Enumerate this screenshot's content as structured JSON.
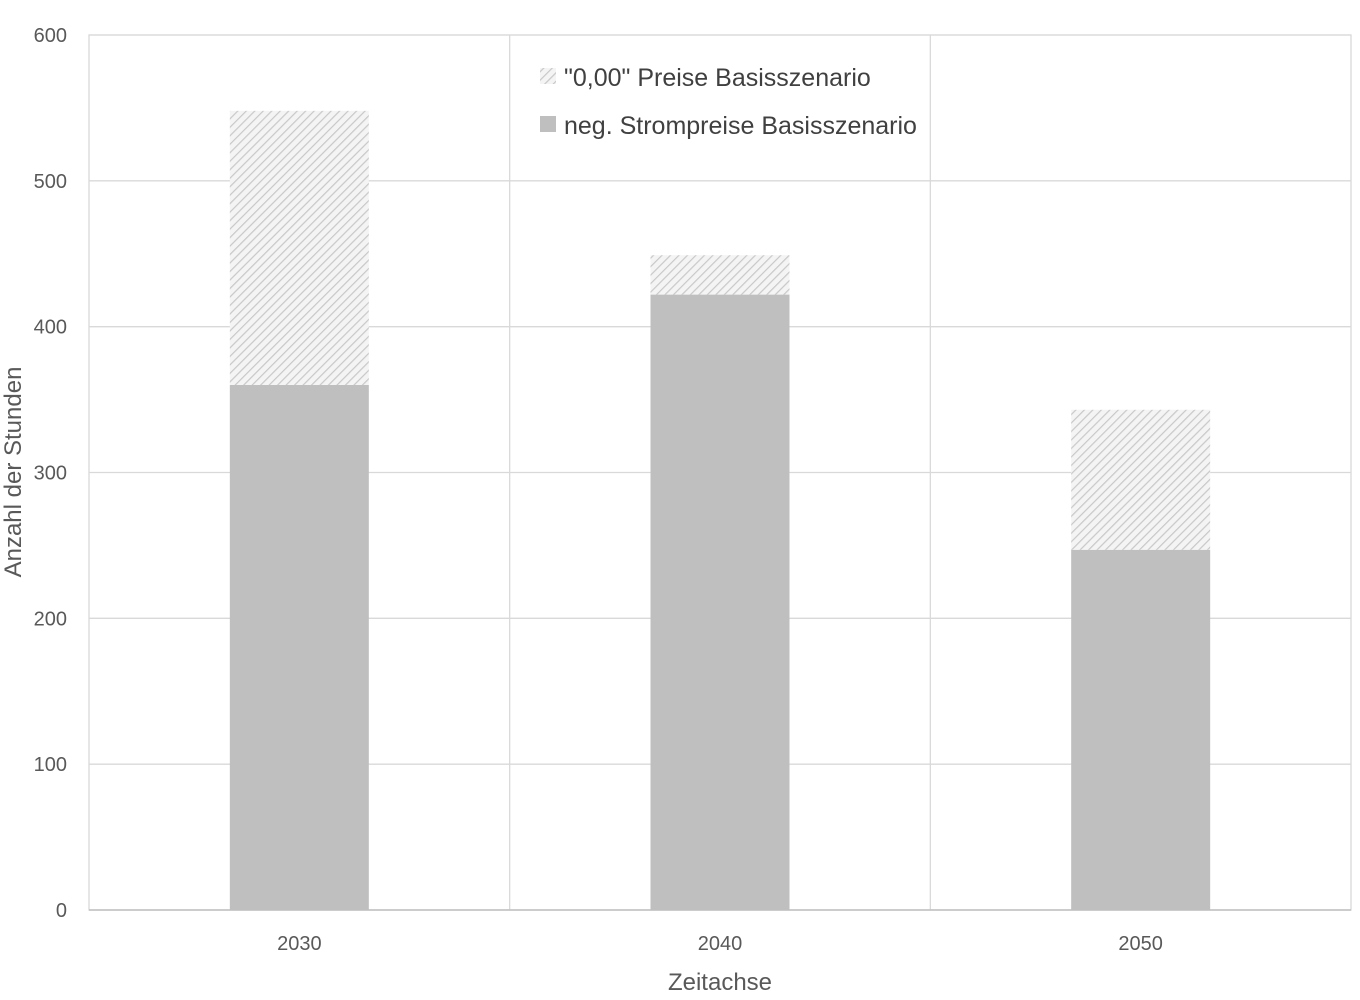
{
  "chart_data": {
    "type": "bar",
    "stacked": true,
    "categories": [
      "2030",
      "2040",
      "2050"
    ],
    "series": [
      {
        "name": "neg. Strompreise Basisszenario",
        "values": [
          360,
          422,
          247
        ],
        "color": "#bfbfbf",
        "pattern": "solid"
      },
      {
        "name": "\"0,00\" Preise Basisszenario",
        "values": [
          188,
          27,
          96
        ],
        "color": "#d9d9d9",
        "pattern": "diagonal-hatch"
      }
    ],
    "legend_order": [
      1,
      0
    ],
    "title": "",
    "xlabel": "Zeitachse",
    "ylabel": "Anzahl der Stunden",
    "ylim": [
      0,
      600
    ],
    "yticks": [
      "0",
      "100",
      "200",
      "300",
      "400",
      "500",
      "600"
    ],
    "ytick_values": [
      0,
      100,
      200,
      300,
      400,
      500,
      600
    ],
    "grid": true,
    "vertical_category_separators": true,
    "legend_position": "top-center"
  }
}
